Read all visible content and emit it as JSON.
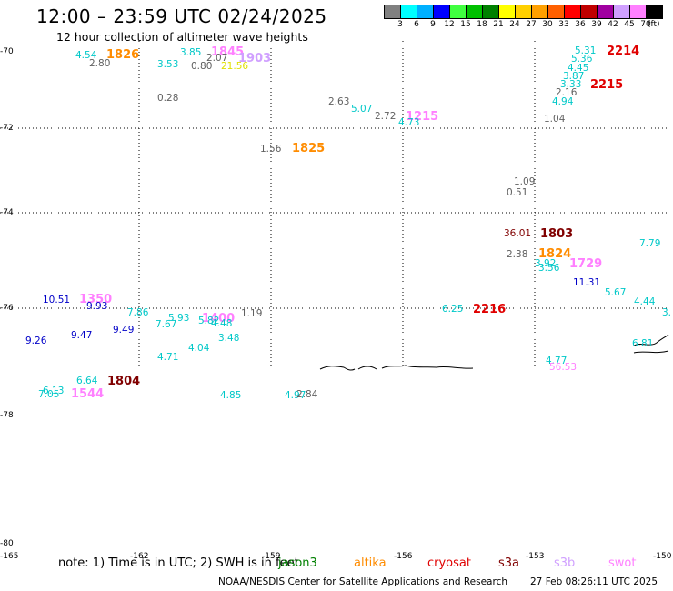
{
  "title": "12:00 – 23:59 UTC 02/24/2025",
  "subtitle": "12 hour collection of altimeter wave heights",
  "legend": {
    "unit": "(ft)",
    "ticks": [
      "3",
      "6",
      "9",
      "12",
      "15",
      "18",
      "21",
      "24",
      "27",
      "30",
      "33",
      "36",
      "39",
      "42",
      "45",
      "70"
    ],
    "colors": [
      "#808080",
      "#00ffff",
      "#00b0ff",
      "#0000ff",
      "#40ff40",
      "#00c000",
      "#008000",
      "#ffff00",
      "#ffd000",
      "#ffa000",
      "#ff6000",
      "#ff0000",
      "#c00000",
      "#a000a0",
      "#d0a0ff",
      "#ff80ff",
      "#000000"
    ]
  },
  "axes": {
    "lat_labels": [
      "-70",
      "-72",
      "-74",
      "-76",
      "-78",
      "-80"
    ],
    "lon_labels": [
      "-165",
      "-162",
      "-159",
      "-156",
      "-153",
      "-150"
    ]
  },
  "labels": [
    {
      "t": "4.54",
      "c": "#00c8c8"
    },
    {
      "t": "1826",
      "c": "#ff8c00",
      "big": true
    },
    {
      "t": "2.80",
      "c": "#606060"
    },
    {
      "t": "3.53",
      "c": "#00c8c8"
    },
    {
      "t": "3.85",
      "c": "#00c8c8"
    },
    {
      "t": "1845",
      "c": "#ff80ff",
      "big": true
    },
    {
      "t": "2.07",
      "c": "#606060"
    },
    {
      "t": "1903",
      "c": "#d0a0ff",
      "big": true
    },
    {
      "t": "0.80",
      "c": "#606060"
    },
    {
      "t": "21.56",
      "c": "#e0e000"
    },
    {
      "t": "0.28",
      "c": "#606060"
    },
    {
      "t": "2.63",
      "c": "#606060"
    },
    {
      "t": "5.07",
      "c": "#00c8c8"
    },
    {
      "t": "2.72",
      "c": "#606060"
    },
    {
      "t": "1215",
      "c": "#ff80ff",
      "big": true
    },
    {
      "t": "4.73",
      "c": "#00c8c8"
    },
    {
      "t": "1.56",
      "c": "#606060"
    },
    {
      "t": "1825",
      "c": "#ff8c00",
      "big": true
    },
    {
      "t": "5.31",
      "c": "#00c8c8"
    },
    {
      "t": "2214",
      "c": "#e00000",
      "big": true
    },
    {
      "t": "5.36",
      "c": "#00c8c8"
    },
    {
      "t": "4.45",
      "c": "#00c8c8"
    },
    {
      "t": "3.87",
      "c": "#00c8c8"
    },
    {
      "t": "3.33",
      "c": "#00c8c8"
    },
    {
      "t": "2215",
      "c": "#e00000",
      "big": true
    },
    {
      "t": "2.16",
      "c": "#606060"
    },
    {
      "t": "4.94",
      "c": "#00c8c8"
    },
    {
      "t": "1.04",
      "c": "#606060"
    },
    {
      "t": "1.09",
      "c": "#606060"
    },
    {
      "t": "0.51",
      "c": "#606060"
    },
    {
      "t": "36.01",
      "c": "#800000"
    },
    {
      "t": "1803",
      "c": "#800000",
      "big": true
    },
    {
      "t": "2.38",
      "c": "#606060"
    },
    {
      "t": "1824",
      "c": "#ff8c00",
      "big": true
    },
    {
      "t": "3.92",
      "c": "#00c8c8"
    },
    {
      "t": "3.56",
      "c": "#00c8c8"
    },
    {
      "t": "1729",
      "c": "#ff80ff",
      "big": true
    },
    {
      "t": "7.79",
      "c": "#00c8c8"
    },
    {
      "t": "11.31",
      "c": "#0000c8"
    },
    {
      "t": "5.67",
      "c": "#00c8c8"
    },
    {
      "t": "4.44",
      "c": "#00c8c8"
    },
    {
      "t": "6.25",
      "c": "#00c8c8"
    },
    {
      "t": "2216",
      "c": "#e00000",
      "big": true
    },
    {
      "t": "10.51",
      "c": "#0000c8"
    },
    {
      "t": "1350",
      "c": "#ff80ff",
      "big": true
    },
    {
      "t": "9.93",
      "c": "#0000c8"
    },
    {
      "t": "7.86",
      "c": "#00c8c8"
    },
    {
      "t": "5.93",
      "c": "#00c8c8"
    },
    {
      "t": "1400",
      "c": "#ff80ff",
      "big": true
    },
    {
      "t": "1.19",
      "c": "#606060"
    },
    {
      "t": "7.67",
      "c": "#00c8c8"
    },
    {
      "t": "5.82",
      "c": "#00c8c8"
    },
    {
      "t": "4.48",
      "c": "#00c8c8"
    },
    {
      "t": "9.26",
      "c": "#0000c8"
    },
    {
      "t": "9.47",
      "c": "#0000c8"
    },
    {
      "t": "9.49",
      "c": "#0000c8"
    },
    {
      "t": "3.48",
      "c": "#00c8c8"
    },
    {
      "t": "4.04",
      "c": "#00c8c8"
    },
    {
      "t": "4.71",
      "c": "#00c8c8"
    },
    {
      "t": "6.64",
      "c": "#00c8c8"
    },
    {
      "t": "1804",
      "c": "#800000",
      "big": true
    },
    {
      "t": "6.13",
      "c": "#00c8c8"
    },
    {
      "t": "7.05",
      "c": "#00c8c8"
    },
    {
      "t": "1544",
      "c": "#ff80ff",
      "big": true
    },
    {
      "t": "4.85",
      "c": "#00c8c8"
    },
    {
      "t": "4.97",
      "c": "#00c8c8"
    },
    {
      "t": "2.84",
      "c": "#606060"
    },
    {
      "t": "4.77",
      "c": "#00c8c8"
    },
    {
      "t": "56.53",
      "c": "#ff80ff"
    },
    {
      "t": "6.81",
      "c": "#00c8c8"
    },
    {
      "t": "3.",
      "c": "#00c8c8"
    }
  ],
  "note": "note:  1) Time is in UTC; 2) SWH is in feet",
  "satellites": [
    {
      "name": "jason3",
      "color": "#008000"
    },
    {
      "name": "altika",
      "color": "#ff8c00"
    },
    {
      "name": "cryosat",
      "color": "#e00000"
    },
    {
      "name": "s3a",
      "color": "#800000"
    },
    {
      "name": "s3b",
      "color": "#d0a0ff"
    },
    {
      "name": "swot",
      "color": "#ff80ff"
    }
  ],
  "credit": "NOAA/NESDIS Center for Satellite Applications and Research",
  "timestamp": "27 Feb 08:26:11 UTC 2025"
}
